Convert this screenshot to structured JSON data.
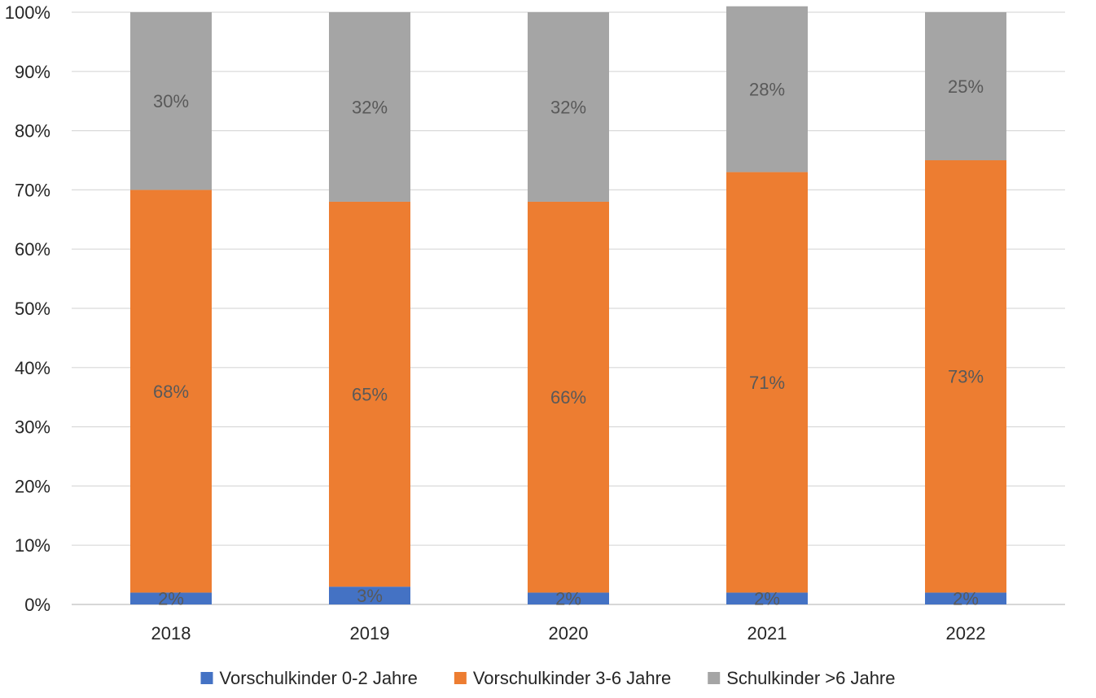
{
  "chart_data": {
    "type": "bar",
    "stacked": true,
    "categories": [
      "2018",
      "2019",
      "2020",
      "2021",
      "2022"
    ],
    "series": [
      {
        "name": "Vorschulkinder 0-2 Jahre",
        "color": "#4472C4",
        "values": [
          2,
          3,
          2,
          2,
          2
        ],
        "labels": [
          "2%",
          "3%",
          "2%",
          "2%",
          "2%"
        ]
      },
      {
        "name": "Vorschulkinder 3-6 Jahre",
        "color": "#ED7D31",
        "values": [
          68,
          65,
          66,
          71,
          73
        ],
        "labels": [
          "68%",
          "65%",
          "66%",
          "71%",
          "73%"
        ]
      },
      {
        "name": "Schulkinder >6 Jahre",
        "color": "#A5A5A5",
        "values": [
          30,
          32,
          32,
          28,
          25
        ],
        "labels": [
          "30%",
          "32%",
          "32%",
          "28%",
          "25%"
        ]
      }
    ],
    "ylim": [
      0,
      100
    ],
    "yticks": [
      "0%",
      "10%",
      "20%",
      "30%",
      "40%",
      "50%",
      "60%",
      "70%",
      "80%",
      "90%",
      "100%"
    ],
    "grid": true,
    "legend": "bottom",
    "title": "",
    "xlabel": "",
    "ylabel": ""
  }
}
